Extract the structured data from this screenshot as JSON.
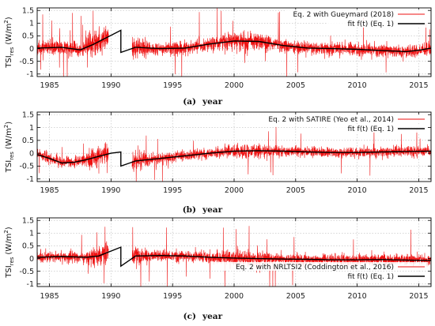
{
  "chart_data": [
    {
      "type": "line",
      "panel_label": "(a)",
      "xlabel": "year",
      "ylabel_main": "TSI",
      "ylabel_sub": "res",
      "ylabel_unit": "(W/m",
      "ylabel_sup": "2",
      "ylabel_close": ")",
      "xlim": [
        1984,
        2016
      ],
      "ylim": [
        -1.1,
        1.6
      ],
      "xticks": [
        1985,
        1990,
        1995,
        2000,
        2005,
        2010,
        2015
      ],
      "yticks": [
        -1,
        -0.5,
        0,
        0.5,
        1,
        1.5
      ],
      "ytick_labels": [
        "-1",
        "-0.5",
        "0",
        "0.5",
        "1",
        "1.5"
      ],
      "grid": true,
      "legend": "top-right",
      "series": [
        {
          "name": "Eq. 2 with Gueymard (2018)",
          "color": "#ee1111",
          "style": "noisy-residuals",
          "x_ranges": [
            [
              1984,
              1989.8
            ],
            [
              1991.7,
              2016
            ]
          ],
          "noise_sd": 0.13,
          "spike_prob": 0.012,
          "spike_amp": 1.2,
          "seed": 11
        },
        {
          "name": "fit f(t) (Eq. 1)",
          "color": "#000000",
          "x": [
            1984,
            1986,
            1987.5,
            1988.5,
            1989.5,
            1990.8,
            1990.8,
            1992,
            1994,
            1996,
            1998,
            2000,
            2002,
            2004,
            2006,
            2008,
            2010,
            2012,
            2014,
            2015.2,
            2016
          ],
          "y": [
            0.02,
            0.05,
            -0.05,
            0.15,
            0.4,
            0.72,
            -0.15,
            0.05,
            0.0,
            0.02,
            0.18,
            0.3,
            0.28,
            0.12,
            0.02,
            0.0,
            -0.03,
            -0.08,
            -0.12,
            -0.05,
            0.02
          ]
        }
      ]
    },
    {
      "type": "line",
      "panel_label": "(b)",
      "xlabel": "year",
      "ylabel_main": "TSI",
      "ylabel_sub": "res",
      "ylabel_unit": "(W/m",
      "ylabel_sup": "2",
      "ylabel_close": ")",
      "xlim": [
        1984,
        2016
      ],
      "ylim": [
        -1.1,
        1.6
      ],
      "xticks": [
        1985,
        1990,
        1995,
        2000,
        2005,
        2010,
        2015
      ],
      "yticks": [
        -1,
        -0.5,
        0,
        0.5,
        1,
        1.5
      ],
      "ytick_labels": [
        "-1",
        "-0.5",
        "0",
        "0.5",
        "1",
        "1.5"
      ],
      "grid": true,
      "legend": "top-right",
      "series": [
        {
          "name": "Eq. 2 with SATIRE (Yeo et al., 2014)",
          "color": "#ee1111",
          "style": "noisy-residuals",
          "x_ranges": [
            [
              1984,
              1989.8
            ],
            [
              1991.7,
              2016
            ]
          ],
          "noise_sd": 0.1,
          "spike_prob": 0.008,
          "spike_amp": 0.8,
          "seed": 23
        },
        {
          "name": "fit f(t) (Eq. 1)",
          "color": "#000000",
          "x": [
            1984,
            1985,
            1986,
            1987,
            1988,
            1989,
            1990,
            1990.8,
            1990.8,
            1992,
            1994,
            1996,
            1998,
            2000,
            2002,
            2004,
            2006,
            2008,
            2010,
            2012,
            2014,
            2016
          ],
          "y": [
            -0.05,
            -0.2,
            -0.38,
            -0.35,
            -0.25,
            -0.12,
            0.0,
            0.05,
            -0.5,
            -0.3,
            -0.2,
            -0.1,
            0.0,
            0.08,
            0.1,
            0.08,
            0.05,
            0.03,
            0.03,
            0.05,
            0.07,
            0.08
          ]
        }
      ]
    },
    {
      "type": "line",
      "panel_label": "(c)",
      "xlabel": "year",
      "ylabel_main": "TSI",
      "ylabel_sub": "res",
      "ylabel_unit": "(W/m",
      "ylabel_sup": "2",
      "ylabel_close": ")",
      "xlim": [
        1984,
        2016
      ],
      "ylim": [
        -1.1,
        1.6
      ],
      "xticks": [
        1985,
        1990,
        1995,
        2000,
        2005,
        2010,
        2015
      ],
      "yticks": [
        -1,
        -0.5,
        0,
        0.5,
        1,
        1.5
      ],
      "ytick_labels": [
        "-1",
        "-0.5",
        "0",
        "0.5",
        "1",
        "1.5"
      ],
      "grid": true,
      "legend": "bottom-right",
      "series": [
        {
          "name": "Eq. 2 with NRLTSI2 (Coddington et al., 2016)",
          "color": "#ee1111",
          "style": "noisy-residuals",
          "x_ranges": [
            [
              1984,
              1989.8
            ],
            [
              1991.7,
              2016
            ]
          ],
          "noise_sd": 0.11,
          "spike_prob": 0.01,
          "spike_amp": 1.1,
          "seed": 37
        },
        {
          "name": "fit f(t) (Eq. 1)",
          "color": "#000000",
          "x": [
            1984,
            1986,
            1988,
            1989,
            1990.8,
            1990.8,
            1992,
            1994,
            1996,
            1998,
            2000,
            2002,
            2004,
            2006,
            2008,
            2010,
            2012,
            2014,
            2016
          ],
          "y": [
            0.05,
            0.08,
            0.05,
            0.1,
            0.45,
            -0.3,
            0.1,
            0.12,
            0.1,
            0.05,
            0.02,
            0.0,
            -0.02,
            -0.03,
            -0.05,
            -0.05,
            -0.04,
            -0.06,
            -0.08
          ]
        }
      ]
    }
  ]
}
